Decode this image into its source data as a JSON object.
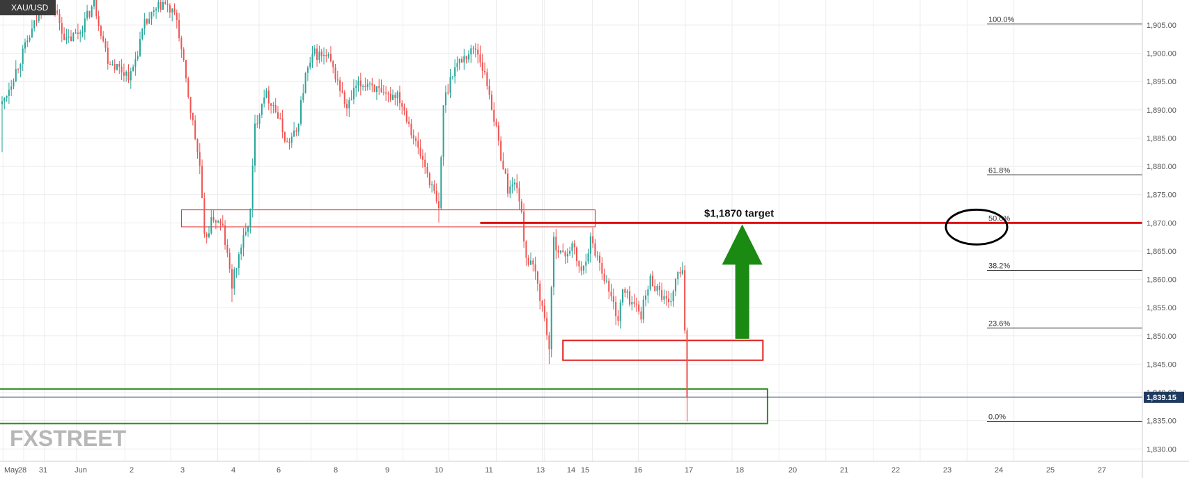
{
  "symbol": "XAU/USD",
  "logo_text": "FXSTREET",
  "colors": {
    "up": "#26a69a",
    "down": "#ef5350",
    "zone_red": "#e02020",
    "zone_green": "#2e8b1e",
    "arrow": "#1a8a12",
    "target_line": "#dd1111",
    "price_badge": "#1f3a5f",
    "grid": "#ececec",
    "fib_line": "#222222"
  },
  "chart_data": {
    "type": "candlestick",
    "title": "",
    "xlabel": "",
    "ylabel": "",
    "ylim": [
      1826.5,
      1909.5
    ],
    "grid": true,
    "y_ticks": [
      "1,830.00",
      "1,835.00",
      "1,840.00",
      "1,845.00",
      "1,850.00",
      "1,855.00",
      "1,860.00",
      "1,865.00",
      "1,870.00",
      "1,875.00",
      "1,880.00",
      "1,885.00",
      "1,890.00",
      "1,895.00",
      "1,900.00",
      "1,905.00"
    ],
    "x_ticks": [
      "May",
      "28",
      "31",
      "Jun",
      "2",
      "3",
      "4",
      "6",
      "8",
      "9",
      "10",
      "11",
      "13",
      "14",
      "15",
      "16",
      "17",
      "18",
      "20",
      "21",
      "22",
      "23",
      "24",
      "25",
      "27"
    ],
    "current_price": "1,839.15",
    "price_path": [
      {
        "t": 0,
        "p": 1891
      },
      {
        "t": 3,
        "p": 1897
      },
      {
        "t": 7,
        "p": 1905
      },
      {
        "t": 10,
        "p": 1911
      },
      {
        "t": 14,
        "p": 1902
      },
      {
        "t": 17,
        "p": 1904
      },
      {
        "t": 20,
        "p": 1909
      },
      {
        "t": 23,
        "p": 1899
      },
      {
        "t": 26,
        "p": 1897
      },
      {
        "t": 28,
        "p": 1896
      },
      {
        "t": 31,
        "p": 1905
      },
      {
        "t": 35,
        "p": 1909
      },
      {
        "t": 38,
        "p": 1906
      },
      {
        "t": 40,
        "p": 1895
      },
      {
        "t": 43,
        "p": 1880
      },
      {
        "t": 44,
        "p": 1867
      },
      {
        "t": 46,
        "p": 1871
      },
      {
        "t": 48,
        "p": 1869
      },
      {
        "t": 50,
        "p": 1859
      },
      {
        "t": 52,
        "p": 1866
      },
      {
        "t": 53,
        "p": 1868
      },
      {
        "t": 54,
        "p": 1872
      },
      {
        "t": 55,
        "p": 1887
      },
      {
        "t": 57,
        "p": 1893
      },
      {
        "t": 59,
        "p": 1891
      },
      {
        "t": 62,
        "p": 1884
      },
      {
        "t": 64,
        "p": 1886
      },
      {
        "t": 66,
        "p": 1896
      },
      {
        "t": 68,
        "p": 1900
      },
      {
        "t": 71,
        "p": 1899
      },
      {
        "t": 73,
        "p": 1895
      },
      {
        "t": 75,
        "p": 1890
      },
      {
        "t": 77,
        "p": 1894
      },
      {
        "t": 80,
        "p": 1895
      },
      {
        "t": 83,
        "p": 1892
      },
      {
        "t": 86,
        "p": 1893
      },
      {
        "t": 88,
        "p": 1889
      },
      {
        "t": 90,
        "p": 1884
      },
      {
        "t": 92,
        "p": 1880
      },
      {
        "t": 94,
        "p": 1875
      },
      {
        "t": 95,
        "p": 1872
      },
      {
        "t": 96,
        "p": 1891
      },
      {
        "t": 98,
        "p": 1897
      },
      {
        "t": 100,
        "p": 1899
      },
      {
        "t": 103,
        "p": 1901
      },
      {
        "t": 104,
        "p": 1899
      },
      {
        "t": 106,
        "p": 1893
      },
      {
        "t": 108,
        "p": 1884
      },
      {
        "t": 110,
        "p": 1876
      },
      {
        "t": 112,
        "p": 1877
      },
      {
        "t": 113,
        "p": 1871
      },
      {
        "t": 114,
        "p": 1864
      },
      {
        "t": 116,
        "p": 1861
      },
      {
        "t": 118,
        "p": 1853
      },
      {
        "t": 119,
        "p": 1848
      },
      {
        "t": 120,
        "p": 1867
      },
      {
        "t": 122,
        "p": 1864
      },
      {
        "t": 124,
        "p": 1866
      },
      {
        "t": 126,
        "p": 1861
      },
      {
        "t": 128,
        "p": 1867
      },
      {
        "t": 130,
        "p": 1863
      },
      {
        "t": 132,
        "p": 1858
      },
      {
        "t": 134,
        "p": 1853
      },
      {
        "t": 135,
        "p": 1858
      },
      {
        "t": 137,
        "p": 1856
      },
      {
        "t": 139,
        "p": 1854
      },
      {
        "t": 141,
        "p": 1860
      },
      {
        "t": 143,
        "p": 1858
      },
      {
        "t": 145,
        "p": 1855
      },
      {
        "t": 147,
        "p": 1861
      },
      {
        "t": 148,
        "p": 1861
      },
      {
        "t": 149,
        "p": 1839.15
      }
    ],
    "zones": [
      {
        "name": "resistance-zone",
        "color": "red",
        "t0": 39,
        "t1": 129,
        "p_low": 1869.3,
        "p_high": 1872.3
      },
      {
        "name": "support-zone",
        "color": "red",
        "t0": 122,
        "t1": 165.5,
        "p_low": 1845.7,
        "p_high": 1849.2
      },
      {
        "name": "demand-zone",
        "color": "green",
        "t0": -1,
        "t1": 166.5,
        "p_low": 1834.5,
        "p_high": 1840.6
      }
    ],
    "target": {
      "price": 1870.0,
      "t0": 104,
      "label": "$1,1870 target"
    },
    "arrow": {
      "t": 161,
      "p_from": 1849.5,
      "p_to": 1870.0
    },
    "fib_levels": [
      {
        "label": "100.0%",
        "price": 1905.2
      },
      {
        "label": "61.8%",
        "price": 1878.5
      },
      {
        "label": "50.0%",
        "price": 1870.0
      },
      {
        "label": "38.2%",
        "price": 1861.6
      },
      {
        "label": "23.6%",
        "price": 1851.4
      },
      {
        "label": "0.0%",
        "price": 1834.9
      }
    ]
  }
}
